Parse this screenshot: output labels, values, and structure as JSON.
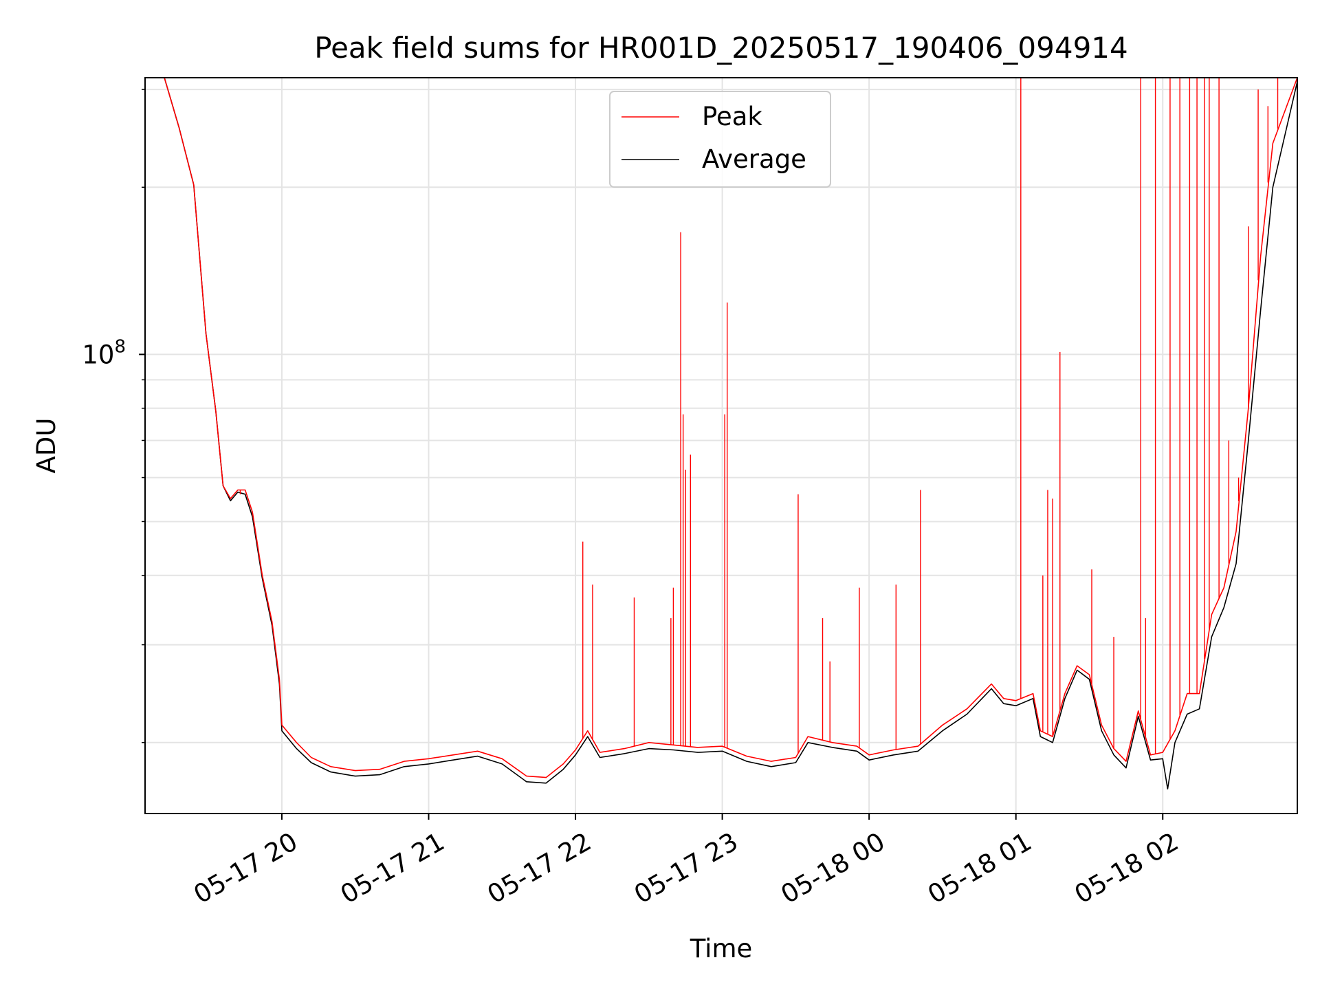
{
  "chart_data": {
    "type": "line",
    "title": "Peak field sums for HR001D_20250517_190406_094914",
    "xlabel": "Time",
    "ylabel": "ADU",
    "y_scale": "log",
    "ylim": [
      14900000,
      315000000
    ],
    "xlim": [
      "2025-05-17 19:04:06",
      "2025-05-18 02:55:00"
    ],
    "x_ticks": [
      {
        "value": "2025-05-17 20:00",
        "label": "05-17 20"
      },
      {
        "value": "2025-05-17 21:00",
        "label": "05-17 21"
      },
      {
        "value": "2025-05-17 22:00",
        "label": "05-17 22"
      },
      {
        "value": "2025-05-17 23:00",
        "label": "05-17 23"
      },
      {
        "value": "2025-05-18 00:00",
        "label": "05-18 00"
      },
      {
        "value": "2025-05-18 01:00",
        "label": "05-18 01"
      },
      {
        "value": "2025-05-18 02:00",
        "label": "05-18 02"
      }
    ],
    "y_major_ticks": [
      {
        "value": 100000000,
        "label_base": "10",
        "label_exp": "8"
      }
    ],
    "y_minor_ticks": [
      20000000,
      30000000,
      40000000,
      50000000,
      60000000,
      70000000,
      80000000,
      90000000,
      200000000,
      300000000
    ],
    "grid": true,
    "legend_position": "upper center",
    "series": [
      {
        "name": "Peak",
        "color": "#ff0000",
        "points": [
          [
            "2025-05-17 19:04",
            315000000
          ],
          [
            "2025-05-17 19:12",
            315000000
          ],
          [
            "2025-05-17 19:18",
            256000000
          ],
          [
            "2025-05-17 19:24",
            202000000
          ],
          [
            "2025-05-17 19:29",
            109000000
          ],
          [
            "2025-05-17 19:33",
            79000000
          ],
          [
            "2025-05-17 19:36",
            58000000
          ],
          [
            "2025-05-17 19:39",
            55000000
          ],
          [
            "2025-05-17 19:42",
            57000000
          ],
          [
            "2025-05-17 19:45",
            57000000
          ],
          [
            "2025-05-17 19:48",
            52000000
          ],
          [
            "2025-05-17 19:52",
            40000000
          ],
          [
            "2025-05-17 19:56",
            33000000
          ],
          [
            "2025-05-17 19:59",
            26000000
          ],
          [
            "2025-05-17 20:00",
            21500000
          ],
          [
            "2025-05-17 20:06",
            20000000
          ],
          [
            "2025-05-17 20:12",
            18800000
          ],
          [
            "2025-05-17 20:20",
            18100000
          ],
          [
            "2025-05-17 20:30",
            17800000
          ],
          [
            "2025-05-17 20:40",
            17900000
          ],
          [
            "2025-05-17 20:50",
            18500000
          ],
          [
            "2025-05-17 21:00",
            18700000
          ],
          [
            "2025-05-17 21:10",
            19000000
          ],
          [
            "2025-05-17 21:20",
            19300000
          ],
          [
            "2025-05-17 21:30",
            18700000
          ],
          [
            "2025-05-17 21:40",
            17400000
          ],
          [
            "2025-05-17 21:48",
            17300000
          ],
          [
            "2025-05-17 21:55",
            18300000
          ],
          [
            "2025-05-17 22:00",
            19400000
          ],
          [
            "2025-05-17 22:05",
            21000000
          ],
          [
            "2025-05-17 22:10",
            19200000
          ],
          [
            "2025-05-17 22:20",
            19500000
          ],
          [
            "2025-05-17 22:30",
            20000000
          ],
          [
            "2025-05-17 22:40",
            19800000
          ],
          [
            "2025-05-17 22:50",
            19600000
          ],
          [
            "2025-05-17 23:00",
            19700000
          ],
          [
            "2025-05-17 23:10",
            18900000
          ],
          [
            "2025-05-17 23:20",
            18500000
          ],
          [
            "2025-05-17 23:30",
            18800000
          ],
          [
            "2025-05-17 23:35",
            20500000
          ],
          [
            "2025-05-17 23:45",
            20000000
          ],
          [
            "2025-05-17 23:55",
            19700000
          ],
          [
            "2025-05-18 00:00",
            19000000
          ],
          [
            "2025-05-18 00:10",
            19400000
          ],
          [
            "2025-05-18 00:20",
            19700000
          ],
          [
            "2025-05-18 00:30",
            21500000
          ],
          [
            "2025-05-18 00:40",
            23000000
          ],
          [
            "2025-05-18 00:50",
            25500000
          ],
          [
            "2025-05-18 00:55",
            24000000
          ],
          [
            "2025-05-18 01:00",
            23800000
          ],
          [
            "2025-05-18 01:07",
            24500000
          ],
          [
            "2025-05-18 01:10",
            21000000
          ],
          [
            "2025-05-18 01:15",
            20500000
          ],
          [
            "2025-05-18 01:20",
            24500000
          ],
          [
            "2025-05-18 01:25",
            27500000
          ],
          [
            "2025-05-18 01:30",
            26500000
          ],
          [
            "2025-05-18 01:35",
            21500000
          ],
          [
            "2025-05-18 01:40",
            19500000
          ],
          [
            "2025-05-18 01:45",
            18500000
          ],
          [
            "2025-05-18 01:50",
            22800000
          ],
          [
            "2025-05-18 01:55",
            19000000
          ],
          [
            "2025-05-18 02:00",
            19200000
          ],
          [
            "2025-05-18 02:05",
            21000000
          ],
          [
            "2025-05-18 02:10",
            24500000
          ],
          [
            "2025-05-18 02:15",
            24500000
          ],
          [
            "2025-05-18 02:20",
            34000000
          ],
          [
            "2025-05-18 02:25",
            38000000
          ],
          [
            "2025-05-18 02:30",
            48000000
          ],
          [
            "2025-05-18 02:35",
            80000000
          ],
          [
            "2025-05-18 02:40",
            150000000
          ],
          [
            "2025-05-18 02:45",
            240000000
          ],
          [
            "2025-05-18 02:55",
            315000000
          ]
        ],
        "spikes": [
          [
            "2025-05-17 19:43",
            56000000
          ],
          [
            "2025-05-17 22:03",
            46000000
          ],
          [
            "2025-05-17 22:07",
            38500000
          ],
          [
            "2025-05-17 22:24",
            36500000
          ],
          [
            "2025-05-17 22:39",
            33500000
          ],
          [
            "2025-05-17 22:40",
            38000000
          ],
          [
            "2025-05-17 22:43",
            166000000
          ],
          [
            "2025-05-17 22:44",
            78000000
          ],
          [
            "2025-05-17 22:45",
            62000000
          ],
          [
            "2025-05-17 22:47",
            66000000
          ],
          [
            "2025-05-17 23:01",
            78000000
          ],
          [
            "2025-05-17 23:02",
            124000000
          ],
          [
            "2025-05-17 23:31",
            56000000
          ],
          [
            "2025-05-17 23:41",
            33500000
          ],
          [
            "2025-05-17 23:44",
            28000000
          ],
          [
            "2025-05-17 23:56",
            38000000
          ],
          [
            "2025-05-18 00:11",
            38500000
          ],
          [
            "2025-05-18 00:21",
            57000000
          ],
          [
            "2025-05-18 01:02",
            315000000
          ],
          [
            "2025-05-18 01:11",
            40000000
          ],
          [
            "2025-05-18 01:13",
            57000000
          ],
          [
            "2025-05-18 01:15",
            55000000
          ],
          [
            "2025-05-18 01:18",
            101000000
          ],
          [
            "2025-05-18 01:31",
            41000000
          ],
          [
            "2025-05-18 01:40",
            31000000
          ],
          [
            "2025-05-18 01:51",
            315000000
          ],
          [
            "2025-05-18 01:53",
            33500000
          ],
          [
            "2025-05-18 01:57",
            315000000
          ],
          [
            "2025-05-18 02:03",
            315000000
          ],
          [
            "2025-05-18 02:07",
            315000000
          ],
          [
            "2025-05-18 02:11",
            315000000
          ],
          [
            "2025-05-18 02:14",
            315000000
          ],
          [
            "2025-05-18 02:17",
            315000000
          ],
          [
            "2025-05-18 02:19",
            315000000
          ],
          [
            "2025-05-18 02:23",
            315000000
          ],
          [
            "2025-05-18 02:27",
            70000000
          ],
          [
            "2025-05-18 02:31",
            60000000
          ],
          [
            "2025-05-18 02:35",
            170000000
          ],
          [
            "2025-05-18 02:39",
            300000000
          ],
          [
            "2025-05-18 02:43",
            280000000
          ],
          [
            "2025-05-18 02:47",
            315000000
          ]
        ]
      },
      {
        "name": "Average",
        "color": "#000000",
        "points": [
          [
            "2025-05-17 19:04",
            315000000
          ],
          [
            "2025-05-17 19:12",
            315000000
          ],
          [
            "2025-05-17 19:18",
            256000000
          ],
          [
            "2025-05-17 19:24",
            202000000
          ],
          [
            "2025-05-17 19:29",
            109000000
          ],
          [
            "2025-05-17 19:33",
            79000000
          ],
          [
            "2025-05-17 19:36",
            58000000
          ],
          [
            "2025-05-17 19:39",
            54500000
          ],
          [
            "2025-05-17 19:42",
            56500000
          ],
          [
            "2025-05-17 19:45",
            56000000
          ],
          [
            "2025-05-17 19:48",
            51000000
          ],
          [
            "2025-05-17 19:52",
            39500000
          ],
          [
            "2025-05-17 19:56",
            32500000
          ],
          [
            "2025-05-17 19:59",
            25500000
          ],
          [
            "2025-05-17 20:00",
            21000000
          ],
          [
            "2025-05-17 20:06",
            19500000
          ],
          [
            "2025-05-17 20:12",
            18400000
          ],
          [
            "2025-05-17 20:20",
            17700000
          ],
          [
            "2025-05-17 20:30",
            17400000
          ],
          [
            "2025-05-17 20:40",
            17500000
          ],
          [
            "2025-05-17 20:50",
            18100000
          ],
          [
            "2025-05-17 21:00",
            18300000
          ],
          [
            "2025-05-17 21:10",
            18600000
          ],
          [
            "2025-05-17 21:20",
            18900000
          ],
          [
            "2025-05-17 21:30",
            18300000
          ],
          [
            "2025-05-17 21:40",
            17000000
          ],
          [
            "2025-05-17 21:48",
            16900000
          ],
          [
            "2025-05-17 21:55",
            17900000
          ],
          [
            "2025-05-17 22:00",
            19000000
          ],
          [
            "2025-05-17 22:05",
            20500000
          ],
          [
            "2025-05-17 22:10",
            18800000
          ],
          [
            "2025-05-17 22:20",
            19100000
          ],
          [
            "2025-05-17 22:30",
            19500000
          ],
          [
            "2025-05-17 22:40",
            19400000
          ],
          [
            "2025-05-17 22:50",
            19200000
          ],
          [
            "2025-05-17 23:00",
            19300000
          ],
          [
            "2025-05-17 23:10",
            18500000
          ],
          [
            "2025-05-17 23:20",
            18100000
          ],
          [
            "2025-05-17 23:30",
            18400000
          ],
          [
            "2025-05-17 23:35",
            20000000
          ],
          [
            "2025-05-17 23:45",
            19600000
          ],
          [
            "2025-05-17 23:55",
            19300000
          ],
          [
            "2025-05-18 00:00",
            18600000
          ],
          [
            "2025-05-18 00:10",
            19000000
          ],
          [
            "2025-05-18 00:20",
            19300000
          ],
          [
            "2025-05-18 00:30",
            21000000
          ],
          [
            "2025-05-18 00:40",
            22500000
          ],
          [
            "2025-05-18 00:50",
            25000000
          ],
          [
            "2025-05-18 00:55",
            23500000
          ],
          [
            "2025-05-18 01:00",
            23300000
          ],
          [
            "2025-05-18 01:07",
            24000000
          ],
          [
            "2025-05-18 01:10",
            20500000
          ],
          [
            "2025-05-18 01:15",
            20000000
          ],
          [
            "2025-05-18 01:20",
            24000000
          ],
          [
            "2025-05-18 01:25",
            27000000
          ],
          [
            "2025-05-18 01:30",
            26000000
          ],
          [
            "2025-05-18 01:35",
            21000000
          ],
          [
            "2025-05-18 01:40",
            19000000
          ],
          [
            "2025-05-18 01:45",
            18000000
          ],
          [
            "2025-05-18 01:50",
            22300000
          ],
          [
            "2025-05-18 01:55",
            18600000
          ],
          [
            "2025-05-18 02:00",
            18700000
          ],
          [
            "2025-05-18 02:02",
            16500000
          ],
          [
            "2025-05-18 02:05",
            20000000
          ],
          [
            "2025-05-18 02:10",
            22500000
          ],
          [
            "2025-05-18 02:15",
            23000000
          ],
          [
            "2025-05-18 02:20",
            31000000
          ],
          [
            "2025-05-18 02:25",
            35000000
          ],
          [
            "2025-05-18 02:30",
            42000000
          ],
          [
            "2025-05-18 02:35",
            70000000
          ],
          [
            "2025-05-18 02:40",
            120000000
          ],
          [
            "2025-05-18 02:45",
            200000000
          ],
          [
            "2025-05-18 02:55",
            310000000
          ]
        ]
      }
    ]
  }
}
